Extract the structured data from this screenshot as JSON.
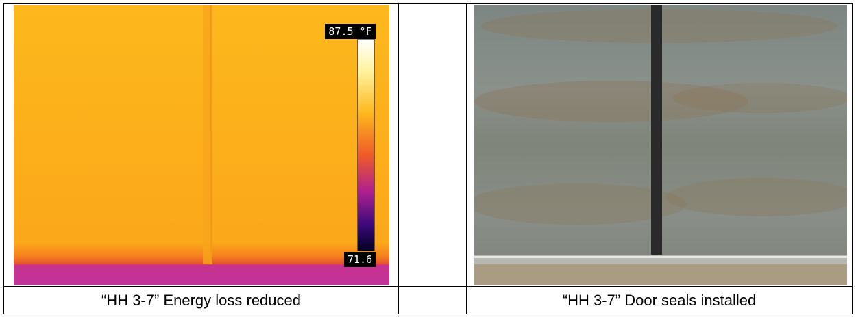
{
  "table": {
    "rows": [
      [
        {
          "image": {
            "scale_max": "87.5 °F",
            "scale_min": "71.6"
          }
        },
        {},
        {
          "image": {}
        }
      ],
      [
        "“HH 3-7” Energy loss reduced",
        "",
        "“HH 3-7” Door seals installed"
      ]
    ]
  }
}
